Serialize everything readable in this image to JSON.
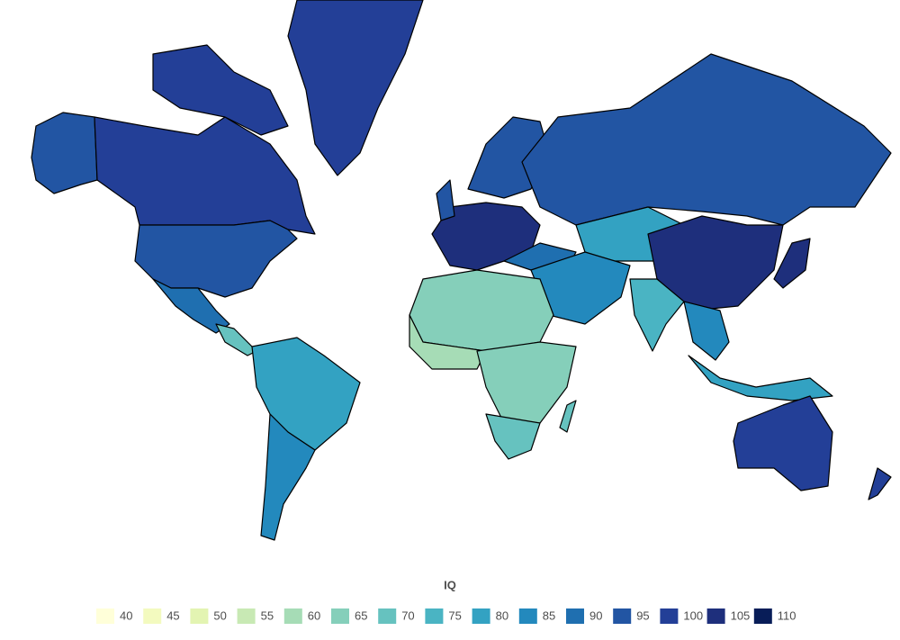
{
  "legend": {
    "title": "IQ",
    "items": [
      {
        "value": 40,
        "color": "#ffffd9"
      },
      {
        "value": 45,
        "color": "#f3fabf"
      },
      {
        "value": 50,
        "color": "#e3f4b2"
      },
      {
        "value": 55,
        "color": "#c8e9b4"
      },
      {
        "value": 60,
        "color": "#a6dcb6"
      },
      {
        "value": 65,
        "color": "#85cfba"
      },
      {
        "value": 70,
        "color": "#66c2bf"
      },
      {
        "value": 75,
        "color": "#4ab4c3"
      },
      {
        "value": 80,
        "color": "#33a2c2"
      },
      {
        "value": 85,
        "color": "#2389bd"
      },
      {
        "value": 90,
        "color": "#1f6fb0"
      },
      {
        "value": 95,
        "color": "#2255a3"
      },
      {
        "value": 100,
        "color": "#233f97"
      },
      {
        "value": 105,
        "color": "#1e2f7c"
      },
      {
        "value": 110,
        "color": "#081d58"
      }
    ]
  }
}
